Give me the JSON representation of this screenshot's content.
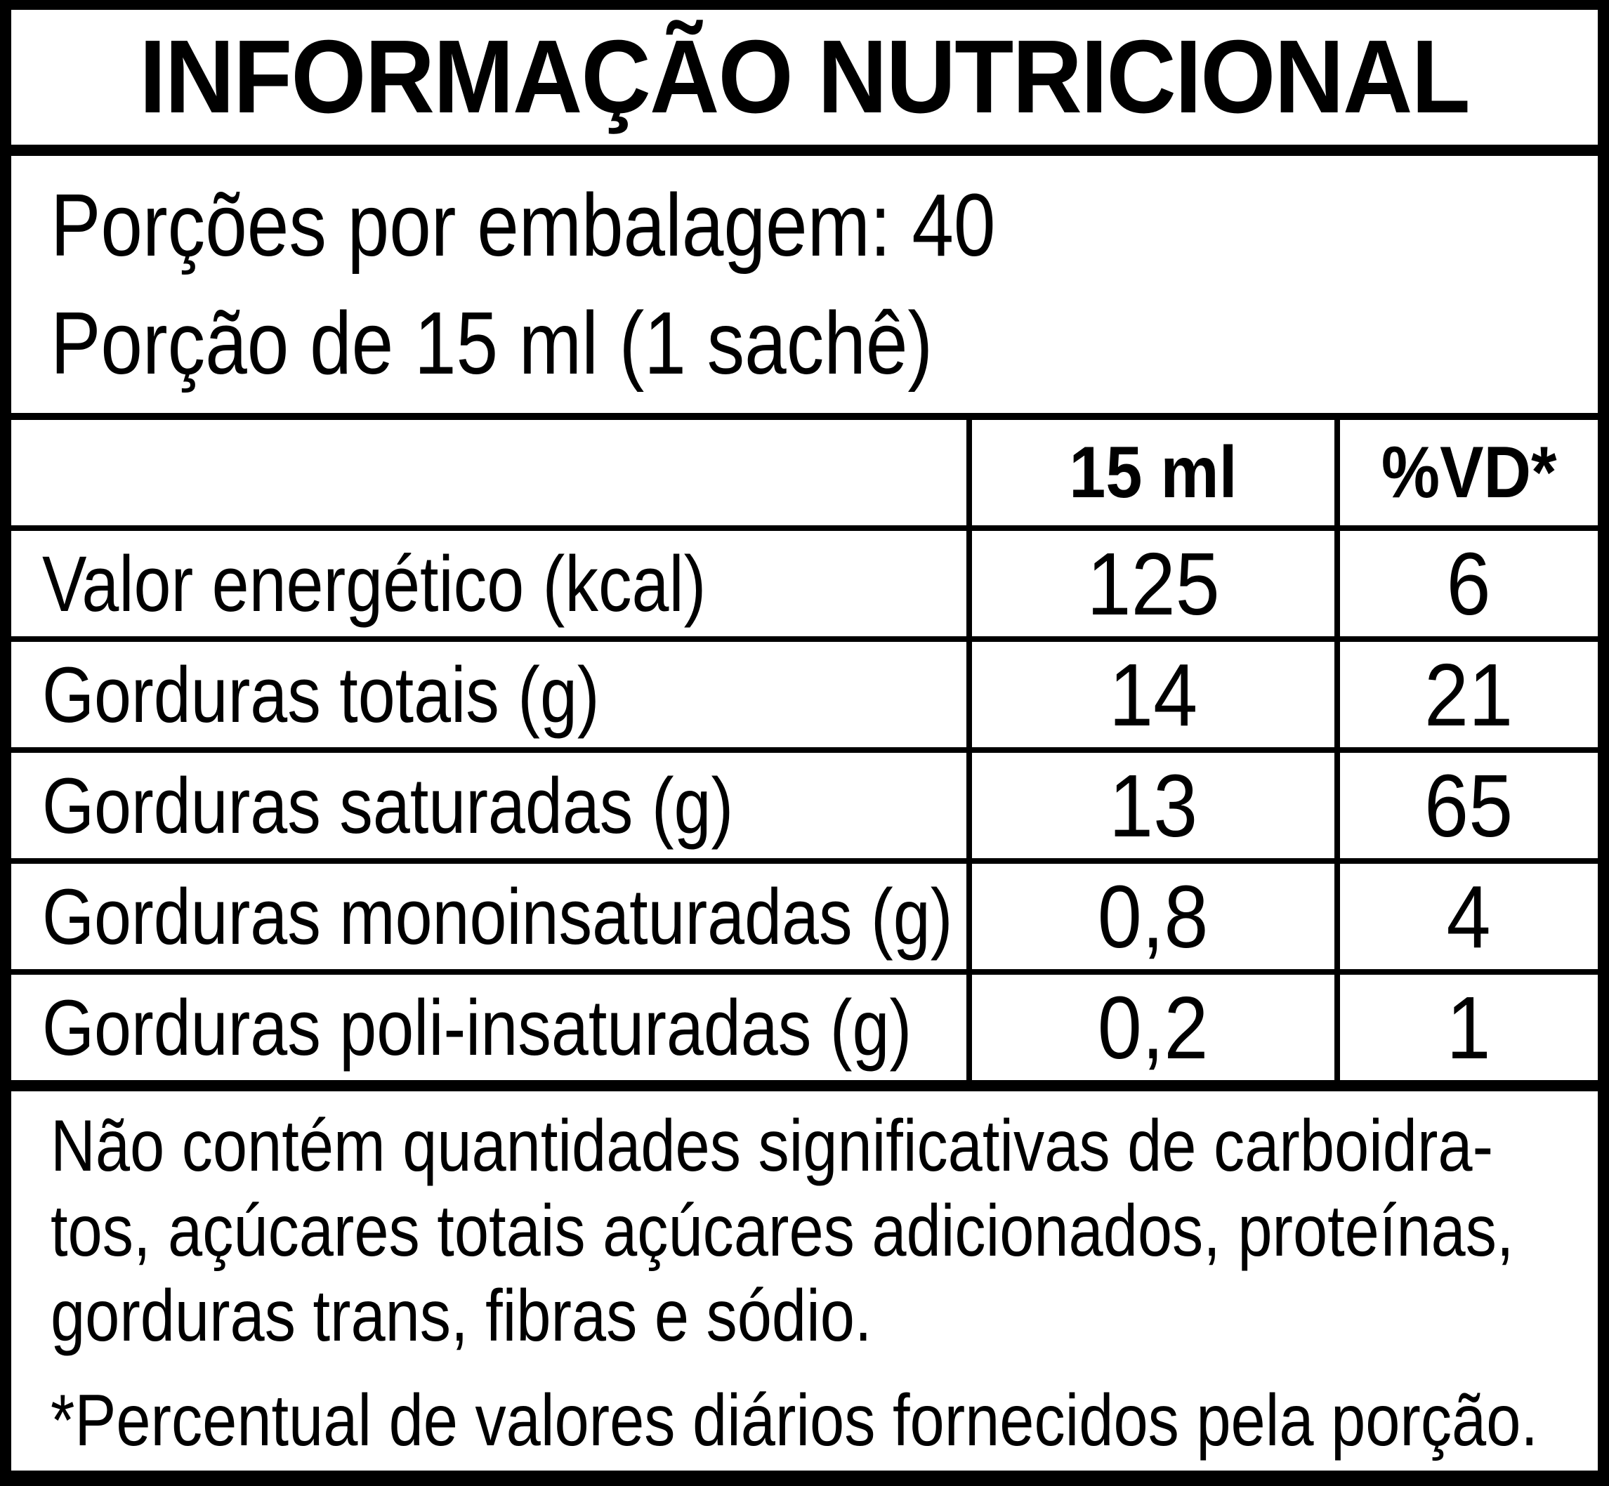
{
  "label": {
    "title": "INFORMAÇÃO NUTRICIONAL",
    "serving": {
      "line1": "Porções por embalagem: 40",
      "line2": "Porção de 15 ml (1 sachê)"
    },
    "table": {
      "columns": {
        "amount": "15 ml",
        "dv": "%VD*"
      },
      "rows": [
        {
          "label": "Valor energético (kcal)",
          "amount": "125",
          "dv": "6"
        },
        {
          "label": "Gorduras totais (g)",
          "amount": "14",
          "dv": "21"
        },
        {
          "label": "Gorduras saturadas (g)",
          "amount": "13",
          "dv": "65"
        },
        {
          "label": "Gorduras monoinsaturadas (g)",
          "amount": "0,8",
          "dv": "4"
        },
        {
          "label": "Gorduras poli-insaturadas (g)",
          "amount": "0,2",
          "dv": "1"
        }
      ]
    },
    "footer": {
      "note_lines": [
        "Não contém quantidades significativas de carboidra-",
        "tos, açúcares totais açúcares adicionados, proteínas,",
        "gorduras trans, fibras e sódio."
      ],
      "percent_note": "*Percentual de valores diários fornecidos pela porção."
    },
    "colors": {
      "foreground": "#000000",
      "background": "#ffffff"
    }
  }
}
